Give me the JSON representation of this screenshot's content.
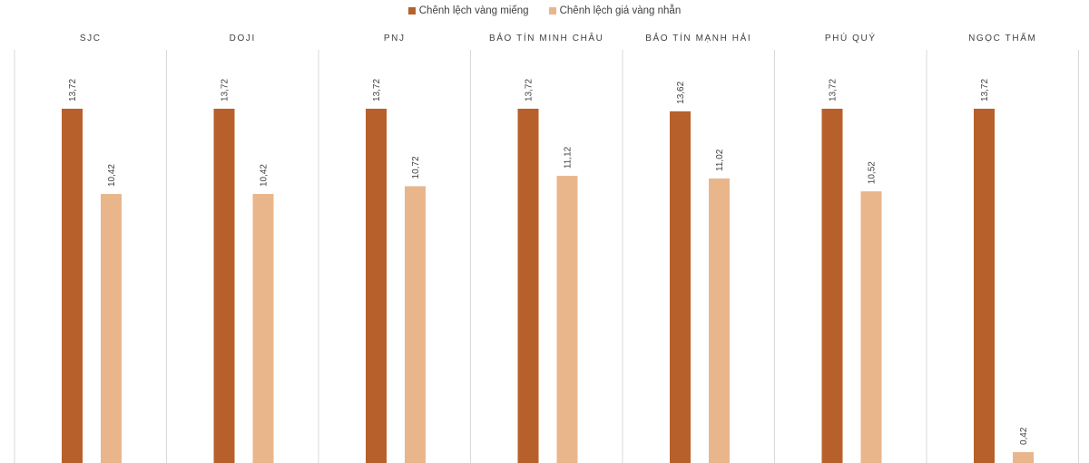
{
  "chart_data": {
    "type": "bar",
    "title": "",
    "xlabel": "",
    "ylabel": "",
    "ylim": [
      0,
      13.72
    ],
    "grid": false,
    "legend_position": "top",
    "categories": [
      "SJC",
      "DOJI",
      "PNJ",
      "BẢO TÍN MINH CHÂU",
      "BẢO TÍN MẠNH HẢI",
      "PHÚ QUÝ",
      "NGỌC THẨM"
    ],
    "series": [
      {
        "name": "Chênh lệch vàng miếng",
        "color": "#b8602b",
        "values": [
          13.72,
          13.72,
          13.72,
          13.72,
          13.62,
          13.72,
          13.72
        ],
        "labels": [
          "13,72",
          "13,72",
          "13,72",
          "13,72",
          "13,62",
          "13,72",
          "13,72"
        ]
      },
      {
        "name": "Chênh lệch giá vàng nhẫn",
        "color": "#e9b68c",
        "values": [
          10.42,
          10.42,
          10.72,
          11.12,
          11.02,
          10.52,
          0.42
        ],
        "labels": [
          "10,42",
          "10,42",
          "10,72",
          "11,12",
          "11,02",
          "10,52",
          "0,42"
        ]
      }
    ]
  }
}
